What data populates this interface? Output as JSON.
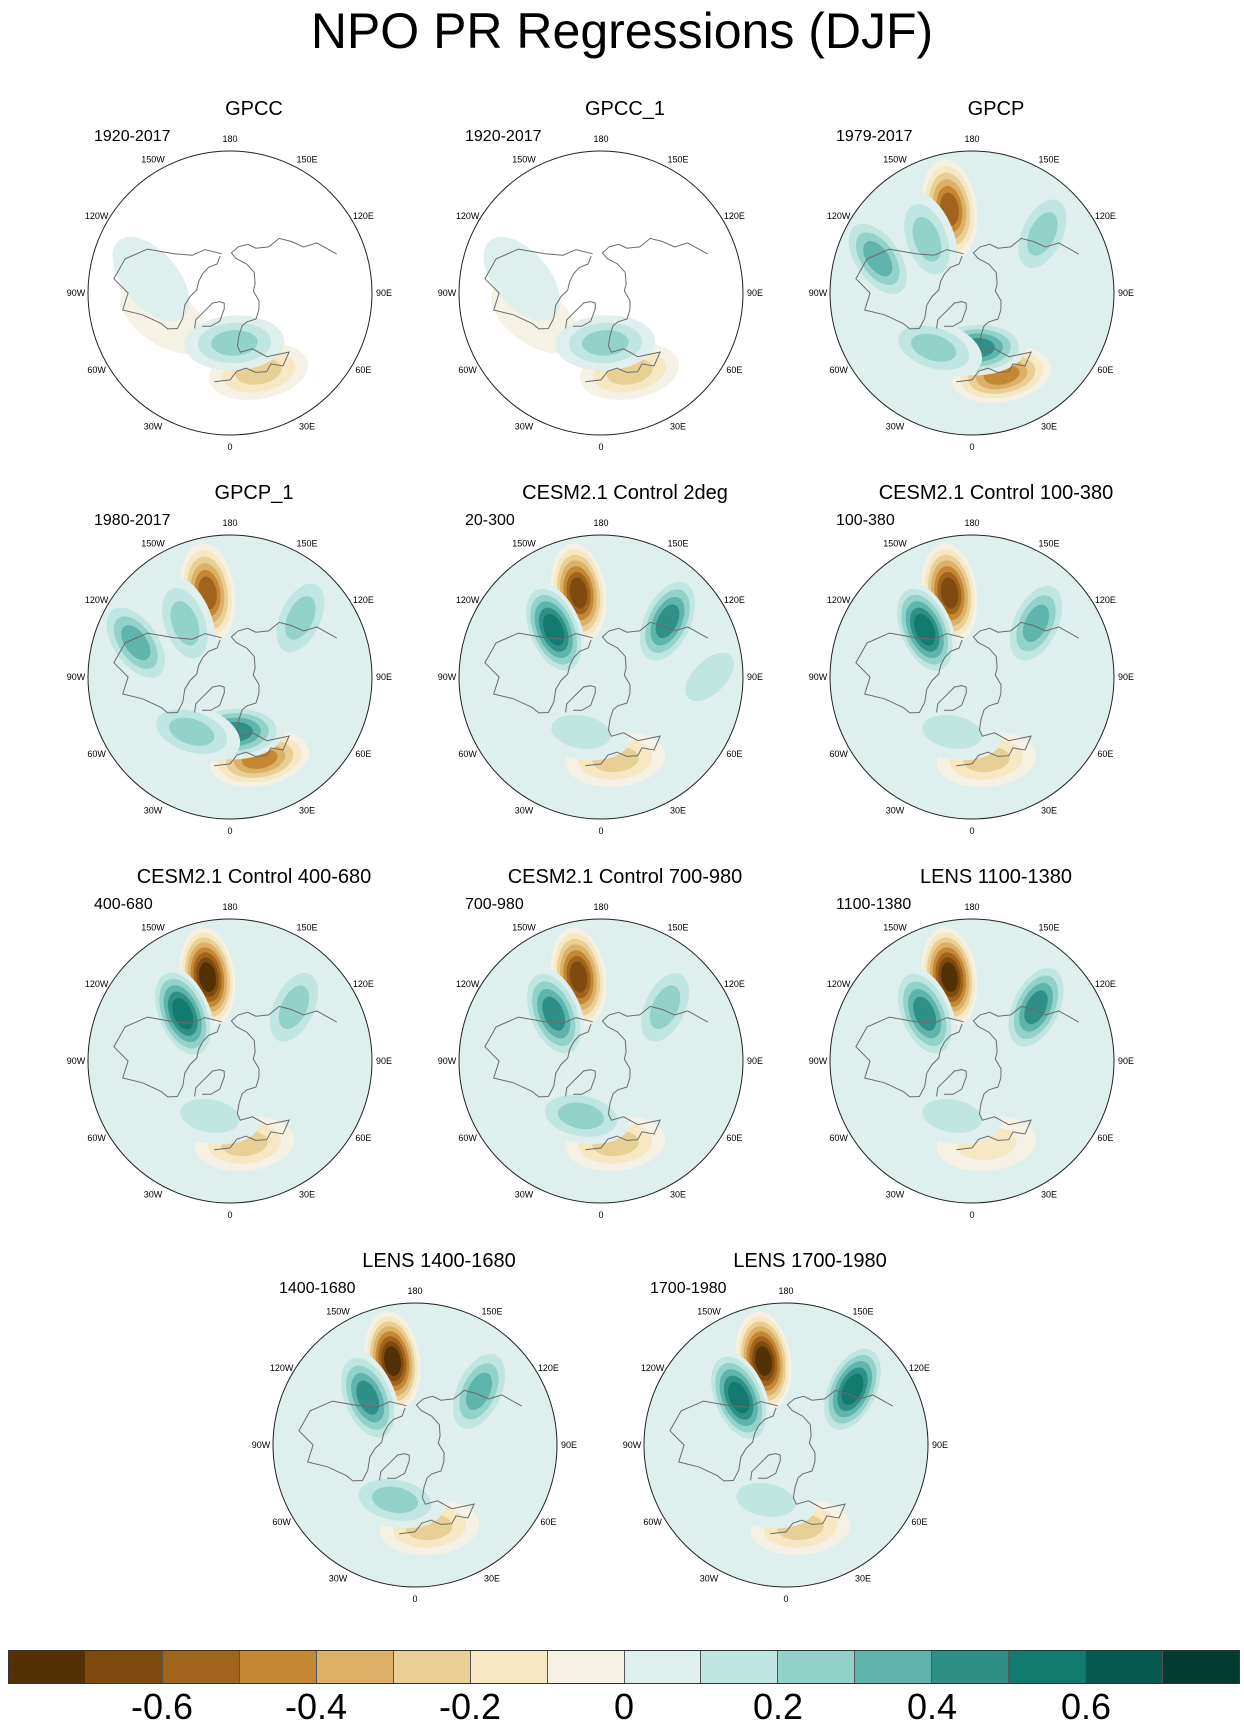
{
  "figure": {
    "title": "NPO PR Regressions (DJF)"
  },
  "chart_data": {
    "type": "heatmap",
    "projection": "polar stereographic (Northern Hemisphere)",
    "title": "NPO PR Regressions (DJF)",
    "longitude_labels": [
      "180",
      "150E",
      "120E",
      "90E",
      "60E",
      "30E",
      "0",
      "30W",
      "60W",
      "90W",
      "120W",
      "150W"
    ],
    "colorbar": {
      "levels": [
        -0.7,
        -0.6,
        -0.5,
        -0.4,
        -0.3,
        -0.2,
        -0.1,
        0,
        0.1,
        0.2,
        0.3,
        0.4,
        0.5,
        0.6,
        0.7
      ],
      "colors": [
        "#543005",
        "#7f4a0e",
        "#a0641c",
        "#c48733",
        "#dcb066",
        "#e8cf96",
        "#f6e8c3",
        "#f5f1e4",
        "#dfefee",
        "#bfe6e0",
        "#93d2c8",
        "#5fb4ab",
        "#2e9087",
        "#137a6e",
        "#055a4f",
        "#003c30"
      ],
      "tick_labels": [
        "-0.6",
        "-0.4",
        "-0.2",
        "0",
        "0.2",
        "0.4",
        "0.6"
      ],
      "tick_values": [
        -0.6,
        -0.4,
        -0.2,
        0,
        0.2,
        0.4,
        0.6
      ]
    },
    "panels": [
      {
        "title": "GPCC",
        "period": "1920-2017",
        "land_only": true,
        "features": [
          {
            "lon": 20,
            "lat": 40,
            "value": -0.3
          },
          {
            "lon": -70,
            "lat": 48,
            "value": -0.15
          },
          {
            "lon": 5,
            "lat": 60,
            "value": 0.3
          },
          {
            "lon": -100,
            "lat": 42,
            "value": 0.1
          }
        ]
      },
      {
        "title": "GPCC_1",
        "period": "1920-2017",
        "land_only": true,
        "features": [
          {
            "lon": 20,
            "lat": 40,
            "value": -0.3
          },
          {
            "lon": -70,
            "lat": 48,
            "value": -0.15
          },
          {
            "lon": 5,
            "lat": 60,
            "value": 0.3
          },
          {
            "lon": -100,
            "lat": 42,
            "value": 0.1
          }
        ]
      },
      {
        "title": "GPCP",
        "period": "1979-2017",
        "land_only": false,
        "features": [
          {
            "lon": -165,
            "lat": 38,
            "value": -0.55
          },
          {
            "lon": -140,
            "lat": 48,
            "value": 0.35
          },
          {
            "lon": -110,
            "lat": 30,
            "value": 0.4
          },
          {
            "lon": 20,
            "lat": 38,
            "value": -0.45
          },
          {
            "lon": 5,
            "lat": 57,
            "value": 0.45
          },
          {
            "lon": -35,
            "lat": 50,
            "value": 0.25
          },
          {
            "lon": 130,
            "lat": 35,
            "value": 0.3
          }
        ]
      },
      {
        "title": "GPCP_1",
        "period": "1980-2017",
        "land_only": false,
        "features": [
          {
            "lon": -165,
            "lat": 38,
            "value": -0.55
          },
          {
            "lon": -140,
            "lat": 48,
            "value": 0.3
          },
          {
            "lon": -110,
            "lat": 30,
            "value": 0.4
          },
          {
            "lon": 20,
            "lat": 38,
            "value": -0.45
          },
          {
            "lon": 5,
            "lat": 57,
            "value": 0.45
          },
          {
            "lon": -35,
            "lat": 50,
            "value": 0.25
          },
          {
            "lon": 130,
            "lat": 35,
            "value": 0.3
          }
        ]
      },
      {
        "title": "CESM2.1 Control 2deg",
        "period": "20-300",
        "land_only": false,
        "features": [
          {
            "lon": -165,
            "lat": 38,
            "value": -0.7
          },
          {
            "lon": -135,
            "lat": 50,
            "value": 0.55
          },
          {
            "lon": 130,
            "lat": 38,
            "value": 0.5
          },
          {
            "lon": 10,
            "lat": 40,
            "value": -0.25
          },
          {
            "lon": -20,
            "lat": 55,
            "value": 0.2
          },
          {
            "lon": 90,
            "lat": 25,
            "value": 0.2
          }
        ]
      },
      {
        "title": "CESM2.1 Control 100-380",
        "period": "100-380",
        "land_only": false,
        "features": [
          {
            "lon": -165,
            "lat": 38,
            "value": -0.65
          },
          {
            "lon": -135,
            "lat": 50,
            "value": 0.6
          },
          {
            "lon": 130,
            "lat": 40,
            "value": 0.4
          },
          {
            "lon": 10,
            "lat": 40,
            "value": -0.25
          },
          {
            "lon": -20,
            "lat": 55,
            "value": 0.2
          }
        ]
      },
      {
        "title": "CESM2.1 Control 400-680",
        "period": "400-680",
        "land_only": false,
        "features": [
          {
            "lon": -165,
            "lat": 38,
            "value": -0.75
          },
          {
            "lon": -135,
            "lat": 50,
            "value": 0.55
          },
          {
            "lon": 130,
            "lat": 40,
            "value": 0.35
          },
          {
            "lon": 10,
            "lat": 40,
            "value": -0.25
          },
          {
            "lon": -20,
            "lat": 55,
            "value": 0.2
          }
        ]
      },
      {
        "title": "CESM2.1 Control 700-980",
        "period": "700-980",
        "land_only": false,
        "features": [
          {
            "lon": -165,
            "lat": 38,
            "value": -0.7
          },
          {
            "lon": -135,
            "lat": 50,
            "value": 0.5
          },
          {
            "lon": 130,
            "lat": 40,
            "value": 0.35
          },
          {
            "lon": 10,
            "lat": 40,
            "value": -0.35
          },
          {
            "lon": -20,
            "lat": 55,
            "value": 0.25
          }
        ]
      },
      {
        "title": "LENS 1100-1380",
        "period": "1100-1380",
        "land_only": false,
        "features": [
          {
            "lon": -165,
            "lat": 38,
            "value": -0.75
          },
          {
            "lon": -135,
            "lat": 50,
            "value": 0.5
          },
          {
            "lon": 130,
            "lat": 40,
            "value": 0.5
          },
          {
            "lon": 10,
            "lat": 40,
            "value": -0.2
          },
          {
            "lon": -20,
            "lat": 55,
            "value": 0.2
          }
        ]
      },
      {
        "title": "LENS 1400-1680",
        "period": "1400-1680",
        "land_only": false,
        "features": [
          {
            "lon": -165,
            "lat": 38,
            "value": -0.75
          },
          {
            "lon": -135,
            "lat": 50,
            "value": 0.5
          },
          {
            "lon": 130,
            "lat": 40,
            "value": 0.4
          },
          {
            "lon": 10,
            "lat": 40,
            "value": -0.3
          },
          {
            "lon": -20,
            "lat": 55,
            "value": 0.3
          }
        ]
      },
      {
        "title": "LENS 1700-1980",
        "period": "1700-1980",
        "land_only": false,
        "features": [
          {
            "lon": -165,
            "lat": 38,
            "value": -0.8
          },
          {
            "lon": -135,
            "lat": 50,
            "value": 0.55
          },
          {
            "lon": 130,
            "lat": 38,
            "value": 0.55
          },
          {
            "lon": 10,
            "lat": 40,
            "value": -0.25
          },
          {
            "lon": -20,
            "lat": 55,
            "value": 0.2
          }
        ]
      }
    ]
  }
}
